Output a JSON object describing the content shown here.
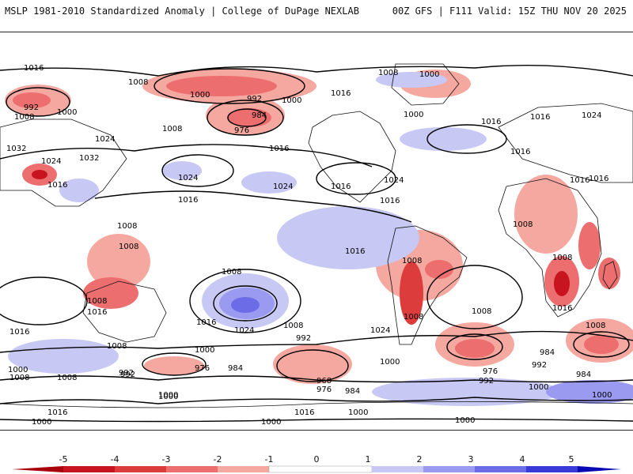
{
  "header": {
    "title": "MSLP 1981-2010 Standardized Anomaly | College of DuPage NEXLAB",
    "run_info": "00Z GFS | F111 Valid: 15Z THU NOV 20 2025"
  },
  "colorbar": {
    "ticks": [
      "-5",
      "-4",
      "-3",
      "-2",
      "-1",
      "0",
      "1",
      "2",
      "3",
      "4",
      "5"
    ],
    "colors": [
      "#a8000a",
      "#c8141e",
      "#dc3c3c",
      "#ec6e6e",
      "#f5a8a0",
      "#ffffff",
      "#c8c8f4",
      "#9a9af0",
      "#6c6ce6",
      "#3a3ad6",
      "#0a0ab4"
    ]
  },
  "contour_labels": [
    "1016",
    "992",
    "1008",
    "1000",
    "1008",
    "1000",
    "992",
    "984",
    "976",
    "1000",
    "1008",
    "1016",
    "1000",
    "1008",
    "1000",
    "1016",
    "1016",
    "1024",
    "1032",
    "1024",
    "1032",
    "1016",
    "1024",
    "1016",
    "1024",
    "1016",
    "1024",
    "1016",
    "1024",
    "1016",
    "1016",
    "1016",
    "1008",
    "1008",
    "1008",
    "1008",
    "1016",
    "1008",
    "1016",
    "1008",
    "1016",
    "1008",
    "1008",
    "1016",
    "1024",
    "1008",
    "1016",
    "1008",
    "1016",
    "1024",
    "1008",
    "992",
    "1000",
    "1008",
    "976",
    "984",
    "992",
    "1000",
    "976",
    "984",
    "992",
    "968",
    "976",
    "984",
    "1000",
    "992",
    "1008",
    "984",
    "1000",
    "1008",
    "1000",
    "992",
    "1000",
    "1016",
    "1000",
    "1000",
    "1016",
    "1000",
    "1000",
    "1000"
  ]
}
